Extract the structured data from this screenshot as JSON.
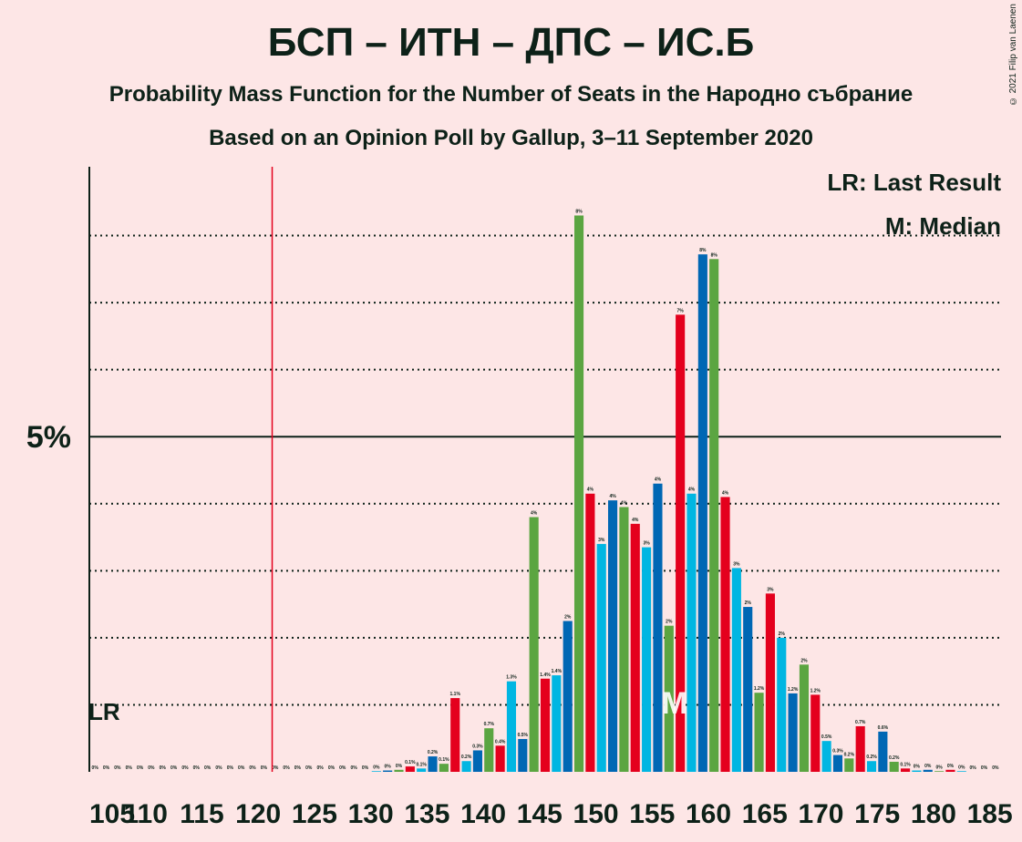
{
  "header": {
    "title": "БСП – ИТН – ДПС – ИС.Б",
    "subtitle1": "Probability Mass Function for the Number of Seats in the Народно събрание",
    "subtitle2": "Based on an Opinion Poll by Gallup, 3–11 September 2020",
    "copyright": "© 2021 Filip van Laenen"
  },
  "colors": {
    "background": "#fde6e6",
    "palette": [
      "#e4001d",
      "#00b6e2",
      "#0067b4",
      "#5ba541"
    ],
    "last_result_line": "#e4001d",
    "axis": "#0d2118"
  },
  "chart_data": {
    "type": "bar",
    "title": "БСП – ИТН – ДПС – ИС.Б",
    "x_min": 105,
    "x_max": 185,
    "x_tick_labels": [
      "105",
      "110",
      "115",
      "120",
      "125",
      "130",
      "135",
      "140",
      "145",
      "150",
      "155",
      "160",
      "165",
      "170",
      "175",
      "180",
      "185"
    ],
    "y_tick_label": "5%",
    "y_tick_value": 5,
    "ylim": [
      0,
      9
    ],
    "grid_lines": [
      1,
      2,
      3,
      4,
      6,
      7,
      8
    ],
    "last_result": 121,
    "last_result_label": "LR",
    "median": 157,
    "median_label": "M",
    "legend": [
      "LR: Last Result",
      "M: Median"
    ],
    "x": [
      105,
      106,
      107,
      108,
      109,
      110,
      111,
      112,
      113,
      114,
      115,
      116,
      117,
      118,
      119,
      120,
      121,
      122,
      123,
      124,
      125,
      126,
      127,
      128,
      129,
      130,
      131,
      132,
      133,
      134,
      135,
      136,
      137,
      138,
      139,
      140,
      141,
      142,
      143,
      144,
      145,
      146,
      147,
      148,
      149,
      150,
      151,
      152,
      153,
      154,
      155,
      156,
      157,
      158,
      159,
      160,
      161,
      162,
      163,
      164,
      165,
      166,
      167,
      168,
      169,
      170,
      171,
      172,
      173,
      174,
      175,
      176,
      177,
      178,
      179,
      180,
      181,
      182,
      183,
      184,
      185
    ],
    "values": [
      0,
      0,
      0,
      0,
      0,
      0,
      0,
      0,
      0,
      0,
      0,
      0,
      0,
      0,
      0,
      0,
      0,
      0,
      0,
      0,
      0,
      0,
      0,
      0,
      0,
      0.01,
      0.02,
      0.03,
      0.08,
      0.05,
      0.23,
      0.12,
      1.1,
      0.16,
      0.32,
      0.65,
      0.39,
      1.35,
      0.49,
      3.8,
      1.39,
      1.44,
      2.25,
      8.3,
      4.15,
      3.4,
      4.05,
      3.95,
      3.7,
      3.35,
      4.3,
      2.18,
      6.82,
      4.15,
      7.72,
      7.65,
      4.1,
      3.04,
      2.46,
      1.18,
      2.66,
      2.0,
      1.17,
      1.6,
      1.15,
      0.46,
      0.25,
      0.2,
      0.68,
      0.16,
      0.6,
      0.15,
      0.05,
      0.02,
      0.03,
      0.01,
      0.03,
      0.01,
      0,
      0,
      0
    ],
    "labels": [
      "0%",
      "0%",
      "0%",
      "0%",
      "0%",
      "0%",
      "0%",
      "0%",
      "0%",
      "0%",
      "0%",
      "0%",
      "0%",
      "0%",
      "0%",
      "0%",
      "0%",
      "0%",
      "0%",
      "0%",
      "0%",
      "0%",
      "0%",
      "0%",
      "0%",
      "0%",
      "0%",
      "0%",
      "0.1%",
      "0.1%",
      "0.2%",
      "0.1%",
      "1.1%",
      "0.2%",
      "0.3%",
      "0.7%",
      "0.4%",
      "1.3%",
      "0.5%",
      "4%",
      "1.4%",
      "1.4%",
      "2%",
      "8%",
      "4%",
      "3%",
      "4%",
      "4%",
      "4%",
      "3%",
      "4%",
      "2%",
      "7%",
      "4%",
      "8%",
      "8%",
      "4%",
      "3%",
      "2%",
      "1.2%",
      "3%",
      "2%",
      "1.2%",
      "2%",
      "1.2%",
      "0.5%",
      "0.3%",
      "0.2%",
      "0.7%",
      "0.2%",
      "0.6%",
      "0.2%",
      "0.1%",
      "0%",
      "0%",
      "0%",
      "0%",
      "0%",
      "0%",
      "0%",
      "0%"
    ]
  }
}
